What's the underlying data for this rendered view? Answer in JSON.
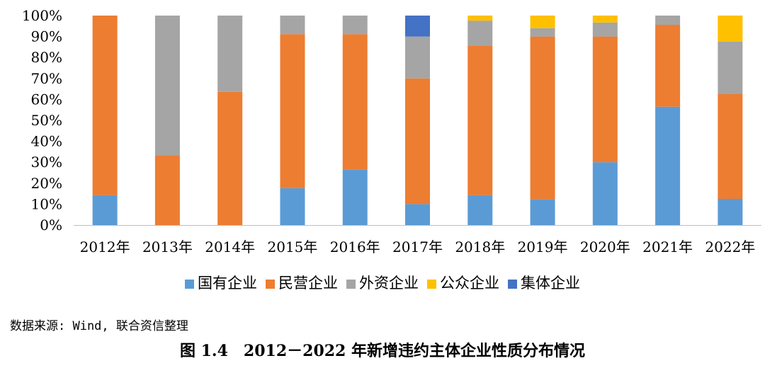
{
  "chart_data": {
    "type": "bar",
    "stacked": true,
    "categories": [
      "2012年",
      "2013年",
      "2014年",
      "2015年",
      "2016年",
      "2017年",
      "2018年",
      "2019年",
      "2020年",
      "2021年",
      "2022年"
    ],
    "series": [
      {
        "name": "国有企业",
        "color": "#5b9bd5",
        "values": [
          14.3,
          0,
          0,
          17.6,
          26.6,
          10.0,
          14.3,
          12.4,
          30.0,
          56.5,
          12.5
        ]
      },
      {
        "name": "民营企业",
        "color": "#ed7d31",
        "values": [
          85.7,
          33.3,
          63.6,
          73.5,
          64.5,
          60.0,
          71.4,
          77.6,
          60.0,
          39.1,
          50.0
        ]
      },
      {
        "name": "外资企业",
        "color": "#a5a5a5",
        "values": [
          0,
          66.7,
          36.4,
          8.9,
          8.9,
          20.0,
          11.9,
          4.0,
          6.7,
          4.4,
          25.0
        ]
      },
      {
        "name": "公众企业",
        "color": "#ffc000",
        "values": [
          0,
          0,
          0,
          0,
          0,
          0,
          2.4,
          6.0,
          3.3,
          0,
          12.5
        ]
      },
      {
        "name": "集体企业",
        "color": "#4472c4",
        "values": [
          0,
          0,
          0,
          0,
          0,
          10.0,
          0,
          0,
          0,
          0,
          0
        ]
      }
    ],
    "yticks": [
      "0%",
      "10%",
      "20%",
      "30%",
      "40%",
      "50%",
      "60%",
      "70%",
      "80%",
      "90%",
      "100%"
    ],
    "ylim": [
      0,
      100
    ],
    "grid": false,
    "legend": "bottom"
  },
  "source": "数据来源: Wind, 联合资信整理",
  "caption": "图 1.4　2012－2022 年新增违约主体企业性质分布情况"
}
